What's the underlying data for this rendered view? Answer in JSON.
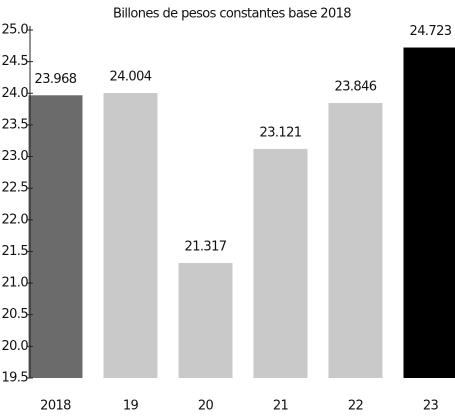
{
  "chart_data": {
    "type": "bar",
    "title": "Billones de pesos constantes base 2018",
    "categories": [
      "2018",
      "19",
      "20",
      "21",
      "22",
      "23"
    ],
    "values": [
      23.968,
      24.004,
      21.317,
      23.121,
      23.846,
      24.723
    ],
    "colors": [
      "#6b6b6b",
      "#c9c9c9",
      "#c9c9c9",
      "#c9c9c9",
      "#c9c9c9",
      "#000000"
    ],
    "ylim": [
      19.5,
      25
    ],
    "yticks": [
      {
        "value": 19.5,
        "label": "19.5"
      },
      {
        "value": 20,
        "label": "20.0"
      },
      {
        "value": 20.5,
        "label": "20.5"
      },
      {
        "value": 21,
        "label": "21.0"
      },
      {
        "value": 21.5,
        "label": "21.5"
      },
      {
        "value": 22,
        "label": "22.0"
      },
      {
        "value": 22.5,
        "label": "22.5"
      },
      {
        "value": 23,
        "label": "23.0"
      },
      {
        "value": 23.5,
        "label": "23.5"
      },
      {
        "value": 24,
        "label": "24.0"
      },
      {
        "value": 24.5,
        "label": "24.5"
      },
      {
        "value": 25,
        "label": "25.0"
      }
    ]
  }
}
